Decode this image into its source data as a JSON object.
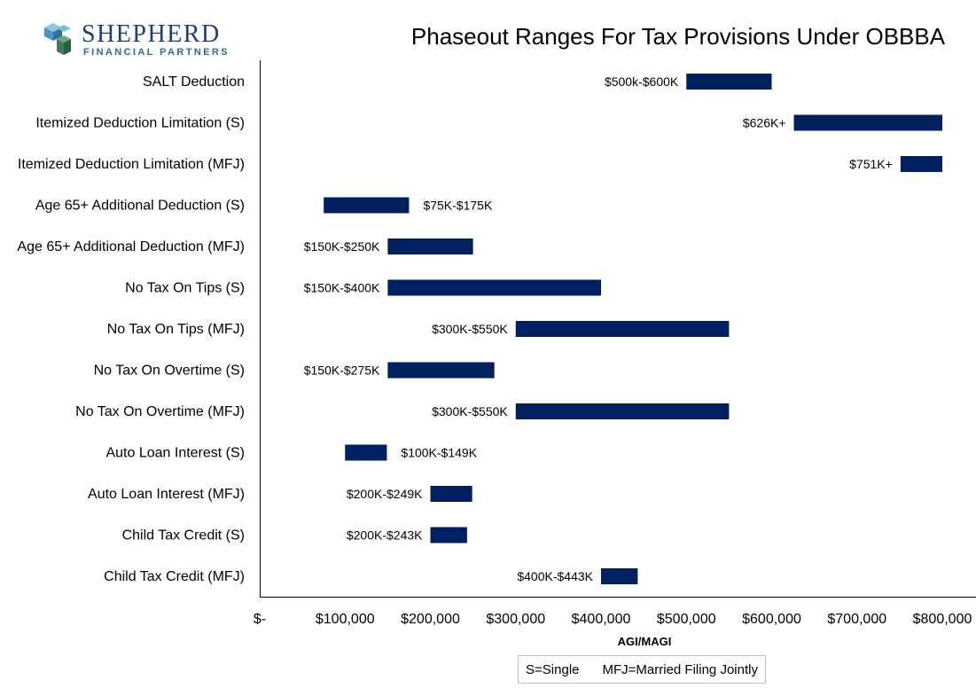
{
  "brand": {
    "name": "SHEPHERD",
    "tagline": "FINANCIAL PARTNERS",
    "name_color": "#1f3f73",
    "tagline_color": "#2a6f82"
  },
  "legend": {
    "single": "S=Single",
    "mfj": "MFJ=Married Filing Jointly"
  },
  "chart_data": {
    "type": "bar",
    "orientation": "horizontal-range",
    "title": "Phaseout Ranges For Tax Provisions Under OBBBA",
    "xlabel": "AGI/MAGI",
    "ylabel": "",
    "xlim": [
      0,
      800000
    ],
    "x_ticks": [
      0,
      100000,
      200000,
      300000,
      400000,
      500000,
      600000,
      700000,
      800000
    ],
    "x_tick_labels": [
      "$-",
      "$100,000",
      "$200,000",
      "$300,000",
      "$400,000",
      "$500,000",
      "$600,000",
      "$700,000",
      "$800,000"
    ],
    "grid": false,
    "bar_color": "#002060",
    "categories": [
      "SALT Deduction",
      "Itemized Deduction Limitation (S)",
      "Itemized Deduction Limitation (MFJ)",
      "Age 65+ Additional Deduction (S)",
      "Age 65+ Additional Deduction (MFJ)",
      "No Tax On Tips (S)",
      "No Tax On Tips (MFJ)",
      "No Tax On Overtime (S)",
      "No Tax On Overtime (MFJ)",
      "Auto Loan Interest (S)",
      "Auto Loan Interest (MFJ)",
      "Child Tax Credit (S)",
      "Child Tax Credit (MFJ)"
    ],
    "ranges": [
      {
        "start": 500000,
        "end": 600000,
        "label": "$500k-$600K",
        "label_side": "left"
      },
      {
        "start": 626000,
        "end": 800000,
        "label": "$626K+",
        "label_side": "left"
      },
      {
        "start": 751000,
        "end": 800000,
        "label": "$751K+",
        "label_side": "left"
      },
      {
        "start": 75000,
        "end": 175000,
        "label": "$75K-$175K",
        "label_side": "right"
      },
      {
        "start": 150000,
        "end": 250000,
        "label": "$150K-$250K",
        "label_side": "left"
      },
      {
        "start": 150000,
        "end": 400000,
        "label": "$150K-$400K",
        "label_side": "left"
      },
      {
        "start": 300000,
        "end": 550000,
        "label": "$300K-$550K",
        "label_side": "left"
      },
      {
        "start": 150000,
        "end": 275000,
        "label": "$150K-$275K",
        "label_side": "left"
      },
      {
        "start": 300000,
        "end": 550000,
        "label": "$300K-$550K",
        "label_side": "left"
      },
      {
        "start": 100000,
        "end": 149000,
        "label": "$100K-$149K",
        "label_side": "right"
      },
      {
        "start": 200000,
        "end": 249000,
        "label": "$200K-$249K",
        "label_side": "left"
      },
      {
        "start": 200000,
        "end": 243000,
        "label": "$200K-$243K",
        "label_side": "left"
      },
      {
        "start": 400000,
        "end": 443000,
        "label": "$400K-$443K",
        "label_side": "left"
      }
    ]
  }
}
